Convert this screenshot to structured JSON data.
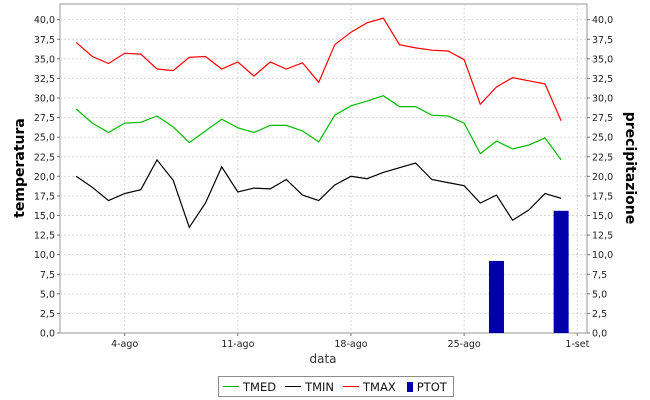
{
  "chart_data": {
    "type": "line+bar",
    "xlabel": "data",
    "ylabel_left": "temperatura",
    "ylabel_right": "precipitazione",
    "ylim": [
      0,
      42
    ],
    "yticks": [
      "0,0",
      "2,5",
      "5,0",
      "7,5",
      "10,0",
      "12,5",
      "15,0",
      "17,5",
      "20,0",
      "22,5",
      "25,0",
      "27,5",
      "30,0",
      "32,5",
      "35,0",
      "37,5",
      "40,0"
    ],
    "xticks": [
      {
        "label": "4-ago",
        "day": 4
      },
      {
        "label": "11-ago",
        "day": 11
      },
      {
        "label": "18-ago",
        "day": 18
      },
      {
        "label": "25-ago",
        "day": 25
      },
      {
        "label": "1-set",
        "day": 32
      }
    ],
    "days": [
      1,
      2,
      3,
      4,
      5,
      6,
      7,
      8,
      9,
      10,
      11,
      12,
      13,
      14,
      15,
      16,
      17,
      18,
      19,
      20,
      21,
      22,
      23,
      24,
      25,
      26,
      27,
      28,
      29,
      30,
      31
    ],
    "grid": true,
    "legend_position": "bottom",
    "series": [
      {
        "name": "TMED",
        "type": "line",
        "color": "#00bb00",
        "values": [
          28.6,
          26.8,
          25.6,
          26.8,
          26.9,
          27.7,
          26.3,
          24.3,
          25.8,
          27.3,
          26.2,
          25.6,
          26.5,
          26.5,
          25.8,
          24.4,
          27.8,
          29.0,
          29.6,
          30.3,
          28.9,
          28.9,
          27.8,
          27.7,
          26.8,
          22.9,
          24.5,
          23.5,
          24.0,
          24.9,
          22.1
        ]
      },
      {
        "name": "TMIN",
        "type": "line",
        "color": "#000000",
        "values": [
          20.0,
          18.6,
          16.9,
          17.8,
          18.3,
          22.1,
          19.5,
          13.5,
          16.6,
          21.2,
          18.0,
          18.5,
          18.4,
          19.6,
          17.6,
          16.9,
          18.9,
          20.0,
          19.7,
          20.5,
          21.1,
          21.7,
          19.6,
          19.2,
          18.8,
          16.6,
          17.6,
          14.4,
          15.7,
          17.8,
          17.2
        ]
      },
      {
        "name": "TMAX",
        "type": "line",
        "color": "#ff0000",
        "values": [
          37.1,
          35.3,
          34.4,
          35.7,
          35.6,
          33.7,
          33.5,
          35.2,
          35.3,
          33.7,
          34.6,
          32.8,
          34.6,
          33.7,
          34.5,
          32.0,
          36.8,
          38.4,
          39.6,
          40.2,
          36.8,
          36.4,
          36.1,
          36.0,
          34.9,
          29.2,
          31.4,
          32.6,
          32.2,
          31.8,
          27.1
        ]
      },
      {
        "name": "PTOT",
        "type": "bar",
        "color": "#0000aa",
        "bars": [
          {
            "day": 27,
            "value": 9.2
          },
          {
            "day": 31,
            "value": 15.6
          }
        ]
      }
    ]
  },
  "legend": {
    "items": [
      {
        "label": "TMED",
        "color": "#00bb00",
        "kind": "line"
      },
      {
        "label": "TMIN",
        "color": "#000000",
        "kind": "line"
      },
      {
        "label": "TMAX",
        "color": "#ff0000",
        "kind": "line"
      },
      {
        "label": "PTOT",
        "color": "#0000aa",
        "kind": "box"
      }
    ]
  }
}
